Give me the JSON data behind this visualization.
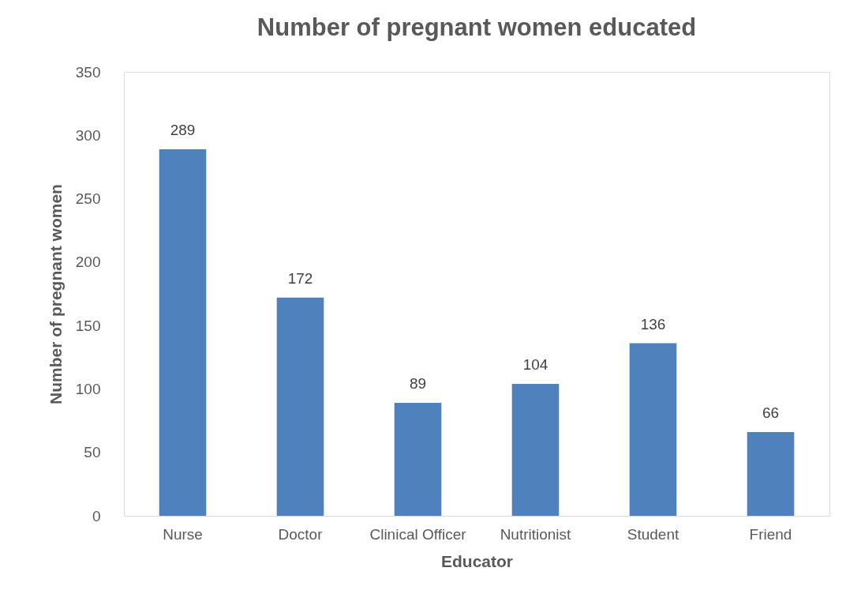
{
  "chart_data": {
    "type": "bar",
    "title": "Number of pregnant women educated",
    "xlabel": "Educator",
    "ylabel": "Number of pregnant women",
    "categories": [
      "Nurse",
      "Doctor",
      "Clinical Officer",
      "Nutritionist",
      "Student",
      "Friend"
    ],
    "values": [
      289,
      172,
      89,
      104,
      136,
      66
    ],
    "color": "#4f81bd",
    "ylim": [
      0,
      350
    ],
    "yticks": [
      0,
      50,
      100,
      150,
      200,
      250,
      300,
      350
    ],
    "grid": false,
    "data_labels": true
  }
}
